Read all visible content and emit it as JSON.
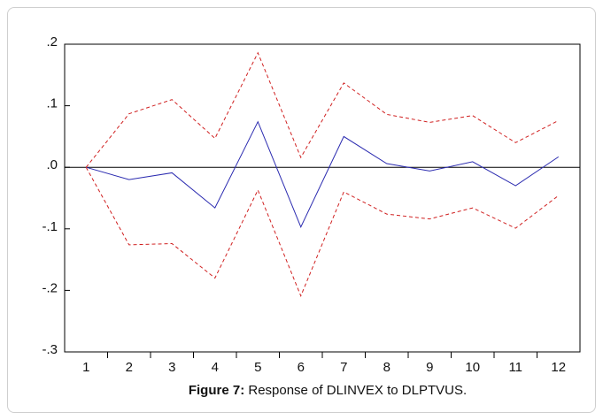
{
  "chart_data": {
    "type": "line",
    "categories": [
      "1",
      "2",
      "3",
      "4",
      "5",
      "6",
      "7",
      "8",
      "9",
      "10",
      "11",
      "12"
    ],
    "series": [
      {
        "color": "#2b2bb0",
        "dashed": false,
        "values": [
          0,
          -0.02,
          -0.009,
          -0.066,
          0.074,
          -0.097,
          0.05,
          0.006,
          -0.006,
          0.009,
          -0.03,
          0.017
        ]
      },
      {
        "color": "#d02020",
        "dashed": true,
        "values": [
          0,
          0.087,
          0.11,
          0.047,
          0.186,
          0.016,
          0.137,
          0.086,
          0.073,
          0.084,
          0.04,
          0.076
        ]
      },
      {
        "color": "#d02020",
        "dashed": true,
        "values": [
          0,
          -0.126,
          -0.124,
          -0.18,
          -0.037,
          -0.209,
          -0.04,
          -0.076,
          -0.084,
          -0.066,
          -0.099,
          -0.046
        ]
      }
    ],
    "ylim": [
      -0.3,
      0.2
    ],
    "yticks": [
      {
        "value": 0.2,
        "label": ".2"
      },
      {
        "value": 0.1,
        "label": ".1"
      },
      {
        "value": 0,
        "label": ".0"
      },
      {
        "value": -0.1,
        "label": "-.1"
      },
      {
        "value": -0.2,
        "label": "-.2"
      },
      {
        "value": -0.3,
        "label": "-.3"
      }
    ],
    "zero_line": true,
    "caption_label": "Figure 7:",
    "caption_text": "Response of DLINVEX to DLPTVUS."
  }
}
